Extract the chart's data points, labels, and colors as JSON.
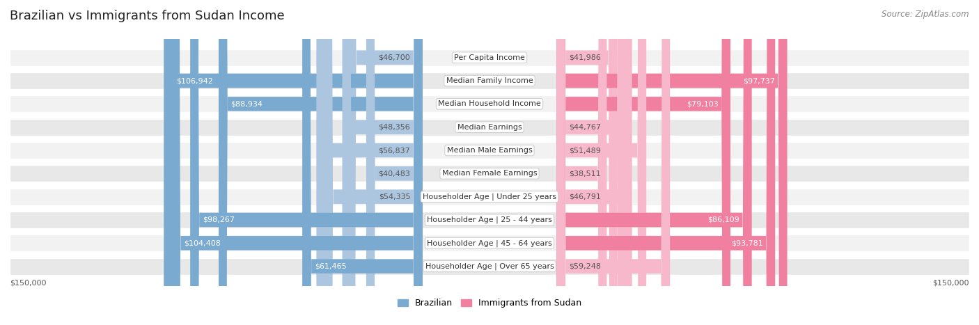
{
  "title": "Brazilian vs Immigrants from Sudan Income",
  "source": "Source: ZipAtlas.com",
  "categories": [
    "Per Capita Income",
    "Median Family Income",
    "Median Household Income",
    "Median Earnings",
    "Median Male Earnings",
    "Median Female Earnings",
    "Householder Age | Under 25 years",
    "Householder Age | 25 - 44 years",
    "Householder Age | 45 - 64 years",
    "Householder Age | Over 65 years"
  ],
  "brazilian_values": [
    46700,
    106942,
    88934,
    48356,
    56837,
    40483,
    54335,
    98267,
    104408,
    61465
  ],
  "sudan_values": [
    41986,
    97737,
    79103,
    44767,
    51489,
    38511,
    46791,
    86109,
    93781,
    59248
  ],
  "brazilian_light": "#adc6e0",
  "brazilian_dark": "#7aaacf",
  "sudan_light": "#f7b8cb",
  "sudan_dark": "#f07fa0",
  "row_bg_even": "#f2f2f2",
  "row_bg_odd": "#e8e8e8",
  "max_value": 150000,
  "highlight_threshold": 60000,
  "title_fontsize": 13,
  "label_fontsize": 8,
  "value_fontsize": 8,
  "legend_fontsize": 9,
  "source_fontsize": 8.5
}
